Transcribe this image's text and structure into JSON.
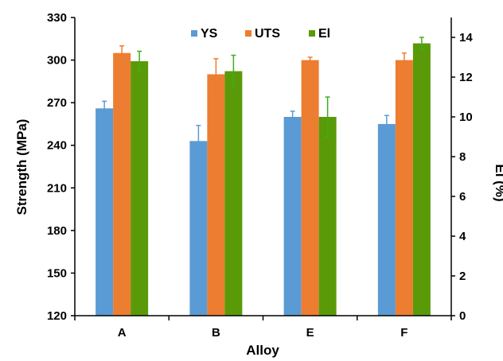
{
  "chart_data": {
    "type": "bar",
    "categories": [
      "A",
      "B",
      "E",
      "F"
    ],
    "xlabel": "Alloy",
    "ylabel": "Strength (MPa)",
    "y2label": "El (%)",
    "ylim": [
      120,
      330
    ],
    "yticks": [
      120,
      150,
      180,
      210,
      240,
      270,
      300,
      330
    ],
    "y2lim": [
      0,
      15
    ],
    "y2ticks": [
      0,
      2,
      4,
      6,
      8,
      10,
      12,
      14
    ],
    "legend_position": "top-center",
    "series": [
      {
        "name": "YS",
        "axis": "left",
        "color": "#5b9bd5",
        "values": [
          266,
          243,
          260,
          255
        ],
        "errors": [
          5,
          11,
          4,
          6
        ]
      },
      {
        "name": "UTS",
        "axis": "left",
        "color": "#ed7d31",
        "values": [
          305,
          290,
          300,
          300
        ],
        "errors": [
          5,
          11,
          2,
          5
        ]
      },
      {
        "name": "El",
        "axis": "right",
        "color": "#5a9a08",
        "values": [
          12.8,
          12.3,
          10.0,
          13.7
        ],
        "errors": [
          0.5,
          0.8,
          1.0,
          0.3
        ]
      }
    ]
  }
}
